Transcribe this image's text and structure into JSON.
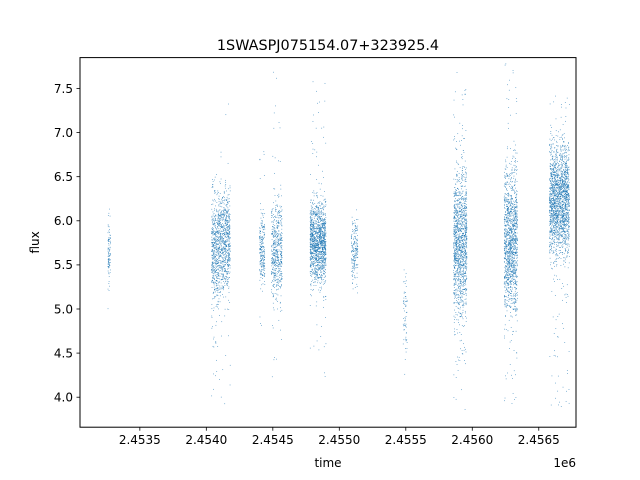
{
  "chart_data": {
    "type": "scatter",
    "title": "1SWASPJ075154.07+323925.4",
    "xlabel": "time",
    "ylabel": "flux",
    "x_offset_label": "1e6",
    "x_tick_labels": [
      "2.4535",
      "2.4540",
      "2.4545",
      "2.4550",
      "2.4555",
      "2.4560",
      "2.4565"
    ],
    "x_ticks": [
      2.4535,
      2.454,
      2.4545,
      2.455,
      2.4555,
      2.456,
      2.4565
    ],
    "y_tick_labels": [
      "4.0",
      "4.5",
      "5.0",
      "5.5",
      "6.0",
      "6.5",
      "7.0",
      "7.5"
    ],
    "y_ticks": [
      4.0,
      4.5,
      5.0,
      5.5,
      6.0,
      6.5,
      7.0,
      7.5
    ],
    "xlim": [
      2.45305,
      2.45678
    ],
    "ylim": [
      3.66,
      7.85
    ],
    "x_scale_factor": 1000000,
    "grid": false,
    "marker_color": "#1f77b4",
    "seasons": [
      {
        "x_start": 2.45326,
        "x_end": 2.45328,
        "y_center": 5.62,
        "y_spread": 0.2,
        "y_min": 4.93,
        "y_max": 6.43,
        "density": 0.4
      },
      {
        "x_start": 2.45404,
        "x_end": 2.45409,
        "y_center": 5.65,
        "y_spread": 0.3,
        "y_min": 4.0,
        "y_max": 6.7,
        "density": 1.0
      },
      {
        "x_start": 2.45409,
        "x_end": 2.45418,
        "y_center": 5.75,
        "y_spread": 0.28,
        "y_min": 3.92,
        "y_max": 7.62,
        "density": 1.0
      },
      {
        "x_start": 2.4544,
        "x_end": 2.45444,
        "y_center": 5.68,
        "y_spread": 0.2,
        "y_min": 4.58,
        "y_max": 6.83,
        "density": 0.6
      },
      {
        "x_start": 2.45449,
        "x_end": 2.45457,
        "y_center": 5.65,
        "y_spread": 0.28,
        "y_min": 4.1,
        "y_max": 7.72,
        "density": 0.8
      },
      {
        "x_start": 2.45478,
        "x_end": 2.4549,
        "y_center": 5.75,
        "y_spread": 0.22,
        "y_min": 4.22,
        "y_max": 7.6,
        "density": 1.4
      },
      {
        "x_start": 2.45509,
        "x_end": 2.45514,
        "y_center": 5.68,
        "y_spread": 0.18,
        "y_min": 4.78,
        "y_max": 6.3,
        "density": 0.4
      },
      {
        "x_start": 2.45548,
        "x_end": 2.45551,
        "y_center": 4.95,
        "y_spread": 0.25,
        "y_min": 4.25,
        "y_max": 5.48,
        "density": 0.2
      },
      {
        "x_start": 2.45586,
        "x_end": 2.45596,
        "y_center": 5.75,
        "y_spread": 0.42,
        "y_min": 3.85,
        "y_max": 7.8,
        "density": 1.6
      },
      {
        "x_start": 2.45624,
        "x_end": 2.45634,
        "y_center": 5.75,
        "y_spread": 0.4,
        "y_min": 3.88,
        "y_max": 7.78,
        "density": 1.6
      },
      {
        "x_start": 2.45658,
        "x_end": 2.45673,
        "y_center": 6.22,
        "y_spread": 0.32,
        "y_min": 3.85,
        "y_max": 7.55,
        "density": 1.6
      }
    ]
  }
}
